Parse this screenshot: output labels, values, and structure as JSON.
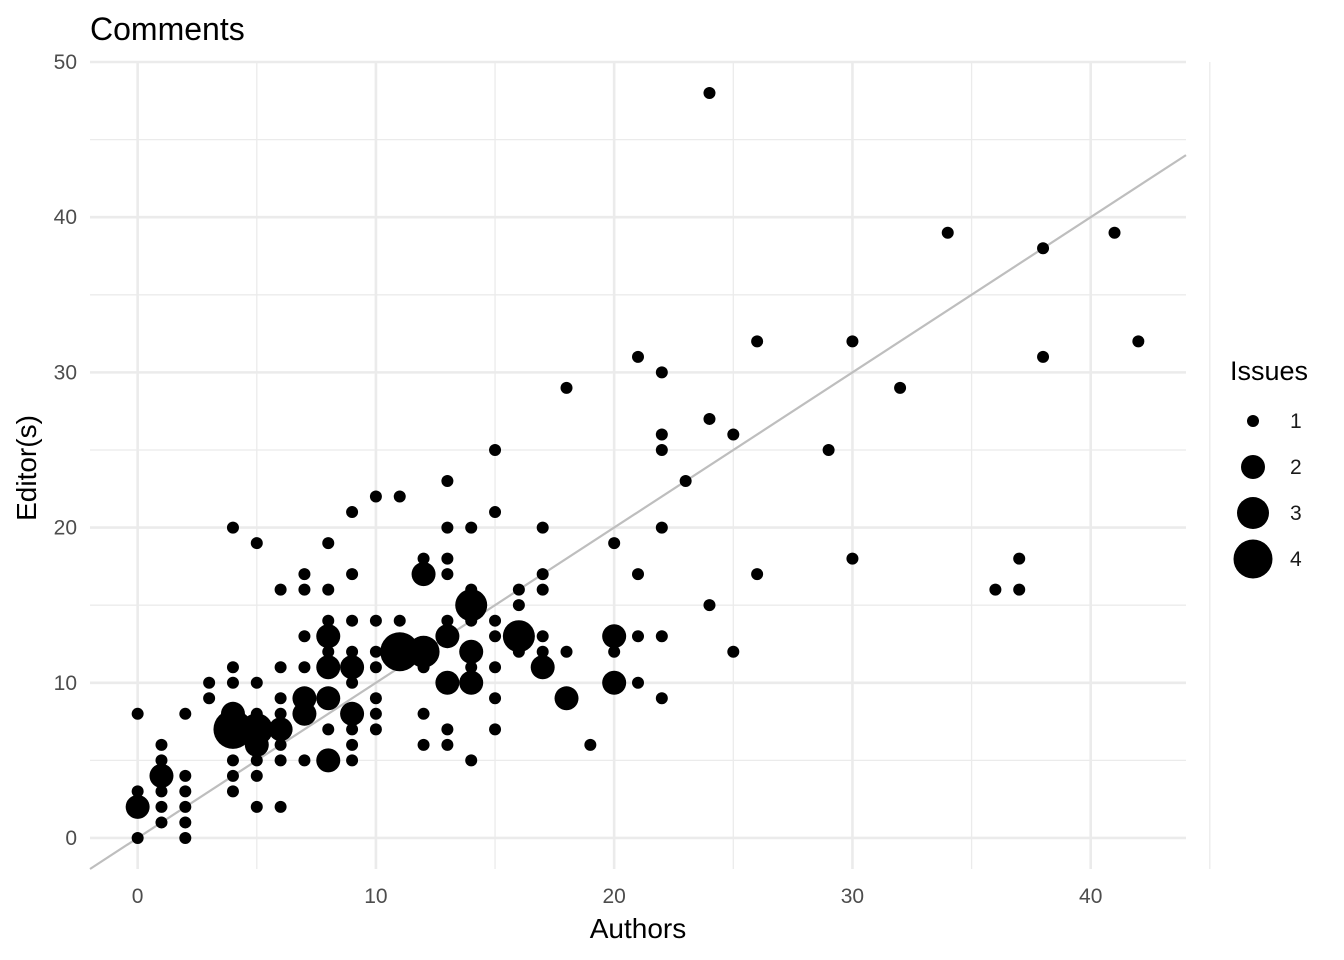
{
  "chart_data": {
    "type": "scatter",
    "title": "Comments",
    "xlabel": "Authors",
    "ylabel": "Editor(s)",
    "xlim": [
      -2,
      44
    ],
    "ylim": [
      -2,
      50
    ],
    "x_ticks": [
      0,
      10,
      20,
      30,
      40
    ],
    "y_ticks": [
      0,
      10,
      20,
      30,
      40,
      50
    ],
    "grid": true,
    "reference_line": {
      "slope": 1,
      "intercept": 0,
      "color": "#bebebe"
    },
    "size_legend": {
      "title": "Issues",
      "position": "right",
      "entries": [
        "1",
        "2",
        "3",
        "4"
      ]
    },
    "points": [
      {
        "x": 0,
        "y": 0,
        "size": 1
      },
      {
        "x": 0,
        "y": 2,
        "size": 2
      },
      {
        "x": 0,
        "y": 3,
        "size": 1
      },
      {
        "x": 0,
        "y": 8,
        "size": 1
      },
      {
        "x": 1,
        "y": 1,
        "size": 1
      },
      {
        "x": 1,
        "y": 2,
        "size": 1
      },
      {
        "x": 1,
        "y": 3,
        "size": 1
      },
      {
        "x": 1,
        "y": 4,
        "size": 2
      },
      {
        "x": 1,
        "y": 5,
        "size": 1
      },
      {
        "x": 1,
        "y": 6,
        "size": 1
      },
      {
        "x": 2,
        "y": 0,
        "size": 1
      },
      {
        "x": 2,
        "y": 1,
        "size": 1
      },
      {
        "x": 2,
        "y": 2,
        "size": 1
      },
      {
        "x": 2,
        "y": 3,
        "size": 1
      },
      {
        "x": 2,
        "y": 4,
        "size": 1
      },
      {
        "x": 2,
        "y": 8,
        "size": 1
      },
      {
        "x": 3,
        "y": 9,
        "size": 1
      },
      {
        "x": 3,
        "y": 10,
        "size": 1
      },
      {
        "x": 4,
        "y": 3,
        "size": 1
      },
      {
        "x": 4,
        "y": 4,
        "size": 1
      },
      {
        "x": 4,
        "y": 5,
        "size": 1
      },
      {
        "x": 4,
        "y": 7,
        "size": 4
      },
      {
        "x": 4,
        "y": 8,
        "size": 2
      },
      {
        "x": 4,
        "y": 10,
        "size": 1
      },
      {
        "x": 4,
        "y": 11,
        "size": 1
      },
      {
        "x": 4,
        "y": 20,
        "size": 1
      },
      {
        "x": 5,
        "y": 2,
        "size": 1
      },
      {
        "x": 5,
        "y": 4,
        "size": 1
      },
      {
        "x": 5,
        "y": 5,
        "size": 1
      },
      {
        "x": 5,
        "y": 6,
        "size": 2
      },
      {
        "x": 5,
        "y": 7,
        "size": 3
      },
      {
        "x": 5,
        "y": 8,
        "size": 1
      },
      {
        "x": 5,
        "y": 10,
        "size": 1
      },
      {
        "x": 5,
        "y": 19,
        "size": 1
      },
      {
        "x": 6,
        "y": 2,
        "size": 1
      },
      {
        "x": 6,
        "y": 5,
        "size": 1
      },
      {
        "x": 6,
        "y": 6,
        "size": 1
      },
      {
        "x": 6,
        "y": 7,
        "size": 2
      },
      {
        "x": 6,
        "y": 8,
        "size": 1
      },
      {
        "x": 6,
        "y": 9,
        "size": 1
      },
      {
        "x": 6,
        "y": 11,
        "size": 1
      },
      {
        "x": 6,
        "y": 16,
        "size": 1
      },
      {
        "x": 7,
        "y": 5,
        "size": 1
      },
      {
        "x": 7,
        "y": 8,
        "size": 2
      },
      {
        "x": 7,
        "y": 9,
        "size": 2
      },
      {
        "x": 7,
        "y": 11,
        "size": 1
      },
      {
        "x": 7,
        "y": 13,
        "size": 1
      },
      {
        "x": 7,
        "y": 16,
        "size": 1
      },
      {
        "x": 7,
        "y": 17,
        "size": 1
      },
      {
        "x": 8,
        "y": 5,
        "size": 2
      },
      {
        "x": 8,
        "y": 7,
        "size": 1
      },
      {
        "x": 8,
        "y": 9,
        "size": 2
      },
      {
        "x": 8,
        "y": 11,
        "size": 2
      },
      {
        "x": 8,
        "y": 12,
        "size": 1
      },
      {
        "x": 8,
        "y": 13,
        "size": 2
      },
      {
        "x": 8,
        "y": 14,
        "size": 1
      },
      {
        "x": 8,
        "y": 16,
        "size": 1
      },
      {
        "x": 8,
        "y": 19,
        "size": 1
      },
      {
        "x": 9,
        "y": 5,
        "size": 1
      },
      {
        "x": 9,
        "y": 6,
        "size": 1
      },
      {
        "x": 9,
        "y": 7,
        "size": 1
      },
      {
        "x": 9,
        "y": 8,
        "size": 2
      },
      {
        "x": 9,
        "y": 10,
        "size": 1
      },
      {
        "x": 9,
        "y": 11,
        "size": 2
      },
      {
        "x": 9,
        "y": 12,
        "size": 1
      },
      {
        "x": 9,
        "y": 14,
        "size": 1
      },
      {
        "x": 9,
        "y": 17,
        "size": 1
      },
      {
        "x": 9,
        "y": 21,
        "size": 1
      },
      {
        "x": 10,
        "y": 7,
        "size": 1
      },
      {
        "x": 10,
        "y": 8,
        "size": 1
      },
      {
        "x": 10,
        "y": 9,
        "size": 1
      },
      {
        "x": 10,
        "y": 11,
        "size": 1
      },
      {
        "x": 10,
        "y": 12,
        "size": 1
      },
      {
        "x": 10,
        "y": 14,
        "size": 1
      },
      {
        "x": 10,
        "y": 22,
        "size": 1
      },
      {
        "x": 11,
        "y": 12,
        "size": 4
      },
      {
        "x": 11,
        "y": 14,
        "size": 1
      },
      {
        "x": 11,
        "y": 22,
        "size": 1
      },
      {
        "x": 12,
        "y": 6,
        "size": 1
      },
      {
        "x": 12,
        "y": 8,
        "size": 1
      },
      {
        "x": 12,
        "y": 11,
        "size": 1
      },
      {
        "x": 12,
        "y": 12,
        "size": 3
      },
      {
        "x": 12,
        "y": 17,
        "size": 2
      },
      {
        "x": 12,
        "y": 18,
        "size": 1
      },
      {
        "x": 13,
        "y": 6,
        "size": 1
      },
      {
        "x": 13,
        "y": 7,
        "size": 1
      },
      {
        "x": 13,
        "y": 10,
        "size": 2
      },
      {
        "x": 13,
        "y": 13,
        "size": 2
      },
      {
        "x": 13,
        "y": 14,
        "size": 1
      },
      {
        "x": 13,
        "y": 17,
        "size": 1
      },
      {
        "x": 13,
        "y": 18,
        "size": 1
      },
      {
        "x": 13,
        "y": 20,
        "size": 1
      },
      {
        "x": 13,
        "y": 23,
        "size": 1
      },
      {
        "x": 14,
        "y": 5,
        "size": 1
      },
      {
        "x": 14,
        "y": 10,
        "size": 2
      },
      {
        "x": 14,
        "y": 11,
        "size": 1
      },
      {
        "x": 14,
        "y": 12,
        "size": 2
      },
      {
        "x": 14,
        "y": 14,
        "size": 1
      },
      {
        "x": 14,
        "y": 15,
        "size": 3
      },
      {
        "x": 14,
        "y": 16,
        "size": 1
      },
      {
        "x": 14,
        "y": 20,
        "size": 1
      },
      {
        "x": 15,
        "y": 7,
        "size": 1
      },
      {
        "x": 15,
        "y": 9,
        "size": 1
      },
      {
        "x": 15,
        "y": 11,
        "size": 1
      },
      {
        "x": 15,
        "y": 13,
        "size": 1
      },
      {
        "x": 15,
        "y": 14,
        "size": 1
      },
      {
        "x": 15,
        "y": 21,
        "size": 1
      },
      {
        "x": 15,
        "y": 25,
        "size": 1
      },
      {
        "x": 16,
        "y": 12,
        "size": 1
      },
      {
        "x": 16,
        "y": 13,
        "size": 3
      },
      {
        "x": 16,
        "y": 15,
        "size": 1
      },
      {
        "x": 16,
        "y": 16,
        "size": 1
      },
      {
        "x": 17,
        "y": 11,
        "size": 2
      },
      {
        "x": 17,
        "y": 12,
        "size": 1
      },
      {
        "x": 17,
        "y": 13,
        "size": 1
      },
      {
        "x": 17,
        "y": 16,
        "size": 1
      },
      {
        "x": 17,
        "y": 17,
        "size": 1
      },
      {
        "x": 17,
        "y": 20,
        "size": 1
      },
      {
        "x": 18,
        "y": 9,
        "size": 2
      },
      {
        "x": 18,
        "y": 12,
        "size": 1
      },
      {
        "x": 18,
        "y": 29,
        "size": 1
      },
      {
        "x": 19,
        "y": 6,
        "size": 1
      },
      {
        "x": 20,
        "y": 10,
        "size": 2
      },
      {
        "x": 20,
        "y": 12,
        "size": 1
      },
      {
        "x": 20,
        "y": 13,
        "size": 2
      },
      {
        "x": 20,
        "y": 19,
        "size": 1
      },
      {
        "x": 21,
        "y": 10,
        "size": 1
      },
      {
        "x": 21,
        "y": 13,
        "size": 1
      },
      {
        "x": 21,
        "y": 17,
        "size": 1
      },
      {
        "x": 21,
        "y": 31,
        "size": 1
      },
      {
        "x": 22,
        "y": 9,
        "size": 1
      },
      {
        "x": 22,
        "y": 13,
        "size": 1
      },
      {
        "x": 22,
        "y": 20,
        "size": 1
      },
      {
        "x": 22,
        "y": 25,
        "size": 1
      },
      {
        "x": 22,
        "y": 26,
        "size": 1
      },
      {
        "x": 22,
        "y": 30,
        "size": 1
      },
      {
        "x": 23,
        "y": 23,
        "size": 1
      },
      {
        "x": 24,
        "y": 15,
        "size": 1
      },
      {
        "x": 24,
        "y": 27,
        "size": 1
      },
      {
        "x": 24,
        "y": 48,
        "size": 1
      },
      {
        "x": 25,
        "y": 12,
        "size": 1
      },
      {
        "x": 25,
        "y": 26,
        "size": 1
      },
      {
        "x": 26,
        "y": 17,
        "size": 1
      },
      {
        "x": 26,
        "y": 32,
        "size": 1
      },
      {
        "x": 29,
        "y": 25,
        "size": 1
      },
      {
        "x": 30,
        "y": 18,
        "size": 1
      },
      {
        "x": 30,
        "y": 32,
        "size": 1
      },
      {
        "x": 32,
        "y": 29,
        "size": 1
      },
      {
        "x": 34,
        "y": 39,
        "size": 1
      },
      {
        "x": 36,
        "y": 16,
        "size": 1
      },
      {
        "x": 37,
        "y": 16,
        "size": 1
      },
      {
        "x": 37,
        "y": 18,
        "size": 1
      },
      {
        "x": 38,
        "y": 31,
        "size": 1
      },
      {
        "x": 38,
        "y": 38,
        "size": 1
      },
      {
        "x": 41,
        "y": 39,
        "size": 1
      },
      {
        "x": 42,
        "y": 32,
        "size": 1
      }
    ]
  }
}
